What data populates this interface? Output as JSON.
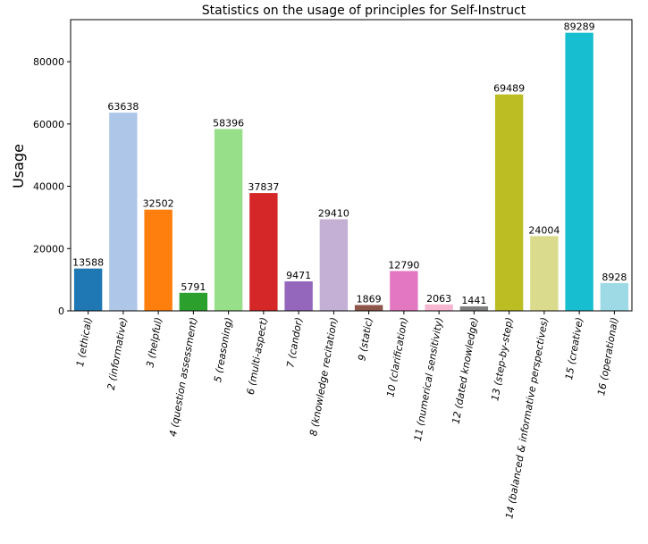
{
  "chart_data": {
    "type": "bar",
    "title": "Statistics on the usage of principles for Self-Instruct",
    "xlabel": "",
    "ylabel": "Usage",
    "ylim": [
      0,
      93500
    ],
    "yticks": [
      0,
      20000,
      40000,
      60000,
      80000
    ],
    "ytick_labels": [
      "0",
      "20000",
      "40000",
      "60000",
      "80000"
    ],
    "grid": false,
    "categories": [
      "1 (ethical)",
      "2 (informative)",
      "3 (helpful)",
      "4 (question assessment)",
      "5 (reasoning)",
      "6 (multi-aspect)",
      "7 (candor)",
      "8 (knowledge recitation)",
      "9 (static)",
      "10 (clarification)",
      "11 (numerical sensitivity)",
      "12 (dated knowledge)",
      "13 (step-by-step)",
      "14 (balanced & informative perspectives)",
      "15 (creative)",
      "16 (operational)"
    ],
    "values": [
      13588,
      63638,
      32502,
      5791,
      58396,
      37837,
      9471,
      29410,
      1869,
      12790,
      2063,
      1441,
      69489,
      24004,
      89289,
      8928
    ],
    "value_labels": [
      "13588",
      "63638",
      "32502",
      "5791",
      "58396",
      "37837",
      "9471",
      "29410",
      "1869",
      "12790",
      "2063",
      "1441",
      "69489",
      "24004",
      "89289",
      "8928"
    ],
    "colors": [
      "#1f77b4",
      "#aec7e8",
      "#ff7f0e",
      "#2ca02c",
      "#98df8a",
      "#d62728",
      "#9467bd",
      "#c5b0d5",
      "#8c564b",
      "#e377c2",
      "#f7b6d2",
      "#7f7f7f",
      "#bcbd22",
      "#dbdb8d",
      "#17becf",
      "#9edae5"
    ]
  }
}
